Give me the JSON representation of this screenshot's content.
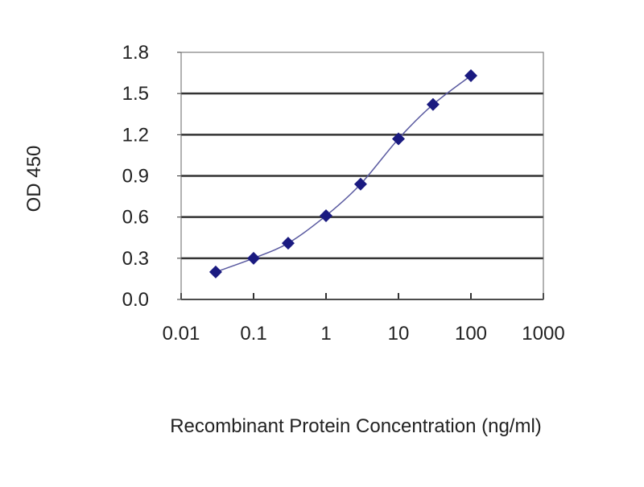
{
  "chart_data": {
    "type": "scatter",
    "title": "",
    "xlabel": "Recombinant Protein Concentration (ng/ml)",
    "ylabel": "OD 450",
    "x_scale": "log",
    "xlim": [
      0.01,
      1000
    ],
    "ylim": [
      0.0,
      1.8
    ],
    "x_ticks": [
      "0.01",
      "0.1",
      "1",
      "10",
      "100",
      "1000"
    ],
    "y_ticks": [
      "0.0",
      "0.3",
      "0.6",
      "0.9",
      "1.2",
      "1.5",
      "1.8"
    ],
    "grid": "horizontal",
    "series": [
      {
        "x": [
          0.03,
          0.1,
          0.3,
          1,
          3,
          10,
          30,
          100
        ],
        "y": [
          0.2,
          0.3,
          0.41,
          0.61,
          0.84,
          1.17,
          1.42,
          1.63
        ],
        "marker": "diamond",
        "line": "smooth fit"
      }
    ],
    "colors": {
      "marker": "#1a1a80",
      "line": "#5a5aa0",
      "grid": "#333333",
      "plot_bg": "#ffffff"
    }
  }
}
